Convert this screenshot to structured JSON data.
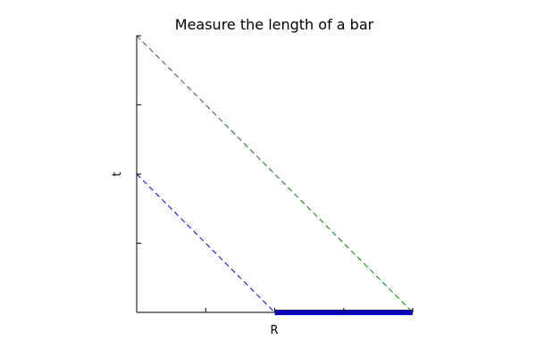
{
  "chart_data": {
    "type": "line",
    "title": "Measure the length of a bar",
    "xlabel": "R",
    "ylabel": "t",
    "xlim": [
      0,
      4
    ],
    "ylim": [
      0,
      4
    ],
    "xticks": [
      0,
      1,
      2,
      3,
      4
    ],
    "yticks": [
      0,
      1,
      2,
      3,
      4
    ],
    "show_tick_labels": false,
    "grid": false,
    "legend": "none",
    "series": [
      {
        "color": "#008000",
        "style": "dashed",
        "x": [
          0,
          4
        ],
        "y": [
          4,
          0
        ]
      },
      {
        "color": "#0000ff",
        "style": "dashed",
        "x": [
          0,
          2
        ],
        "y": [
          2,
          0
        ]
      },
      {
        "color": "#0000ff",
        "style": "solid-thick",
        "x": [
          2,
          4
        ],
        "y": [
          0,
          0
        ]
      }
    ]
  }
}
